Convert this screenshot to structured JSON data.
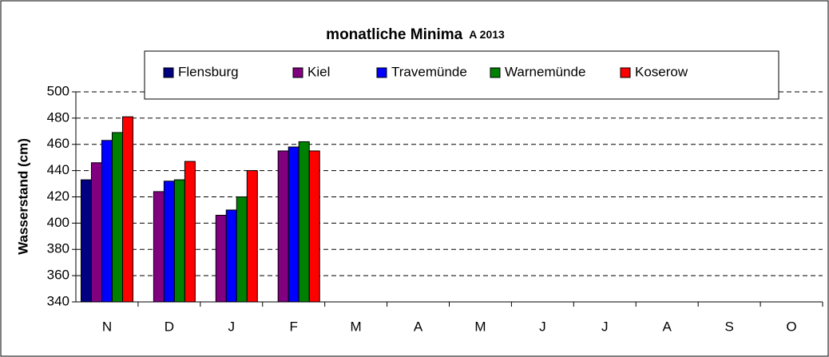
{
  "chart_data": {
    "type": "bar",
    "title": "monatliche Minima",
    "subtitle": "A 2013",
    "y_label": "Wasserstand (cm)",
    "categories": [
      "N",
      "D",
      "J",
      "F",
      "M",
      "A",
      "M",
      "J",
      "J",
      "A",
      "S",
      "O"
    ],
    "series": [
      {
        "name": "Flensburg",
        "color": "#000080",
        "values": [
          433,
          null,
          null,
          null,
          null,
          null,
          null,
          null,
          null,
          null,
          null,
          null
        ]
      },
      {
        "name": "Kiel",
        "color": "#800080",
        "values": [
          446,
          424,
          406,
          455,
          null,
          null,
          null,
          null,
          null,
          null,
          null,
          null
        ]
      },
      {
        "name": "Travemünde",
        "color": "#0000ff",
        "values": [
          463,
          432,
          410,
          458,
          null,
          null,
          null,
          null,
          null,
          null,
          null,
          null
        ]
      },
      {
        "name": "Warnemünde",
        "color": "#008000",
        "values": [
          469,
          433,
          420,
          462,
          null,
          null,
          null,
          null,
          null,
          null,
          null,
          null
        ]
      },
      {
        "name": "Koserow",
        "color": "#ff0000",
        "values": [
          481,
          447,
          440,
          455,
          null,
          null,
          null,
          null,
          null,
          null,
          null,
          null
        ]
      }
    ],
    "ylim": [
      340,
      500
    ],
    "yticks": [
      340,
      360,
      380,
      400,
      420,
      440,
      460,
      480,
      500
    ],
    "grid": true
  }
}
